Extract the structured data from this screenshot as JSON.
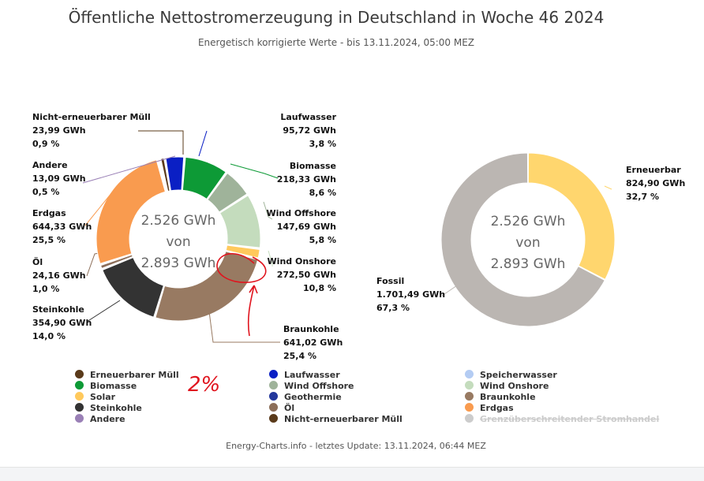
{
  "title": "Öffentliche Nettostromerzeugung in Deutschland in Woche 46 2024",
  "subtitle": "Energetisch korrigierte Werte - bis 13.11.2024, 05:00 MEZ",
  "footer": "Energy-Charts.info - letztes Update: 13.11.2024, 06:44 MEZ",
  "chart_data": [
    {
      "type": "pie",
      "variant": "donut",
      "center_text": [
        "2.526 GWh",
        "von",
        "2.893 GWh"
      ],
      "slices": [
        {
          "name": "Nicht-erneuerbarer Müll",
          "value": 23.99,
          "value_label": "23,99 GWh",
          "percent_label": "0,9 %",
          "color": "#5a3a1a"
        },
        {
          "name": "Laufwasser",
          "value": 95.72,
          "value_label": "95,72 GWh",
          "percent_label": "3,8 %",
          "color": "#0a1fc4"
        },
        {
          "name": "Biomasse",
          "value": 218.33,
          "value_label": "218,33 GWh",
          "percent_label": "8,6 %",
          "color": "#0d9a36"
        },
        {
          "name": "Wind Offshore",
          "value": 147.69,
          "value_label": "147,69 GWh",
          "percent_label": "5,8 %",
          "color": "#9fb39a"
        },
        {
          "name": "Wind Onshore",
          "value": 272.5,
          "value_label": "272,50 GWh",
          "percent_label": "10,8 %",
          "color": "#c4dcbd"
        },
        {
          "name": "Solar",
          "value": 50.0,
          "color": "#ffc95c"
        },
        {
          "name": "Braunkohle",
          "value": 641.02,
          "value_label": "641,02 GWh",
          "percent_label": "25,4 %",
          "color": "#987a62"
        },
        {
          "name": "Steinkohle",
          "value": 354.9,
          "value_label": "354,90 GWh",
          "percent_label": "14,0 %",
          "color": "#333333"
        },
        {
          "name": "Öl",
          "value": 24.16,
          "value_label": "24,16 GWh",
          "percent_label": "1,0 %",
          "color": "#8c6e59"
        },
        {
          "name": "Erdgas",
          "value": 644.33,
          "value_label": "644,33 GWh",
          "percent_label": "25,5 %",
          "color": "#f99b4f"
        },
        {
          "name": "Andere",
          "value": 13.09,
          "value_label": "13,09 GWh",
          "percent_label": "0,5 %",
          "color": "#9a80b6"
        }
      ]
    },
    {
      "type": "pie",
      "variant": "donut",
      "center_text": [
        "2.526 GWh",
        "von",
        "2.893 GWh"
      ],
      "slices": [
        {
          "name": "Erneuerbar",
          "value": 824.9,
          "value_label": "824,90 GWh",
          "percent_label": "32,7 %",
          "color": "#ffd66e"
        },
        {
          "name": "Fossil",
          "value": 1701.49,
          "value_label": "1.701,49 GWh",
          "percent_label": "67,3 %",
          "color": "#bbb6b2"
        }
      ]
    }
  ],
  "legend": [
    {
      "label": "Erneuerbarer Müll",
      "color": "#5a3a1a",
      "visible": true
    },
    {
      "label": "Laufwasser",
      "color": "#0a1fc4",
      "visible": true
    },
    {
      "label": "Speicherwasser",
      "color": "#b4ccf3",
      "visible": true
    },
    {
      "label": "Biomasse",
      "color": "#0d9a36",
      "visible": true
    },
    {
      "label": "Wind Offshore",
      "color": "#9fb39a",
      "visible": true
    },
    {
      "label": "Wind Onshore",
      "color": "#c4dcbd",
      "visible": true
    },
    {
      "label": "Solar",
      "color": "#ffc95c",
      "visible": true
    },
    {
      "label": "Geothermie",
      "color": "#23379c",
      "visible": true
    },
    {
      "label": "Braunkohle",
      "color": "#987a62",
      "visible": true
    },
    {
      "label": "Steinkohle",
      "color": "#333333",
      "visible": true
    },
    {
      "label": "Öl",
      "color": "#8c6e59",
      "visible": true
    },
    {
      "label": "Erdgas",
      "color": "#f99b4f",
      "visible": true
    },
    {
      "label": "Andere",
      "color": "#9a80b6",
      "visible": true
    },
    {
      "label": "Nicht-erneuerbarer Müll",
      "color": "#5a3a1a",
      "visible": true
    },
    {
      "label": "Grenzüberschreitender Stromhandel",
      "color": "#cccccc",
      "visible": false
    }
  ],
  "annotation": {
    "text": "2%",
    "color": "#e0141e"
  }
}
